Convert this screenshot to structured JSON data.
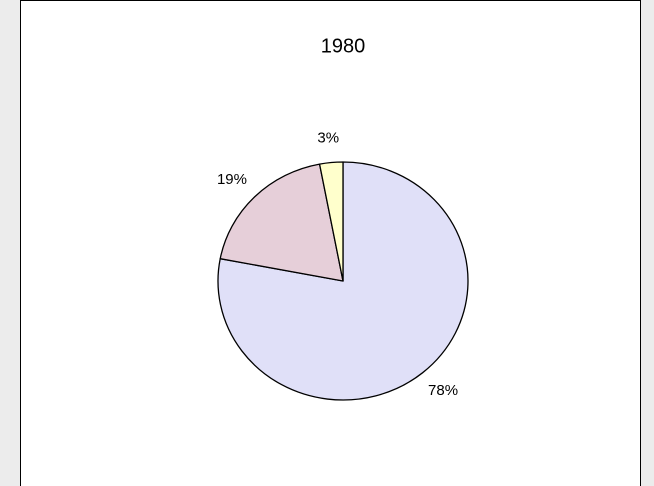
{
  "chart_data": {
    "type": "pie",
    "title": "1980",
    "categories": [
      null,
      null,
      null
    ],
    "values": [
      78,
      19,
      3
    ],
    "value_labels": [
      "78%",
      "19%",
      "3%"
    ],
    "colors": [
      "#e0e0f8",
      "#e6cfd9",
      "#ffffcc"
    ]
  }
}
